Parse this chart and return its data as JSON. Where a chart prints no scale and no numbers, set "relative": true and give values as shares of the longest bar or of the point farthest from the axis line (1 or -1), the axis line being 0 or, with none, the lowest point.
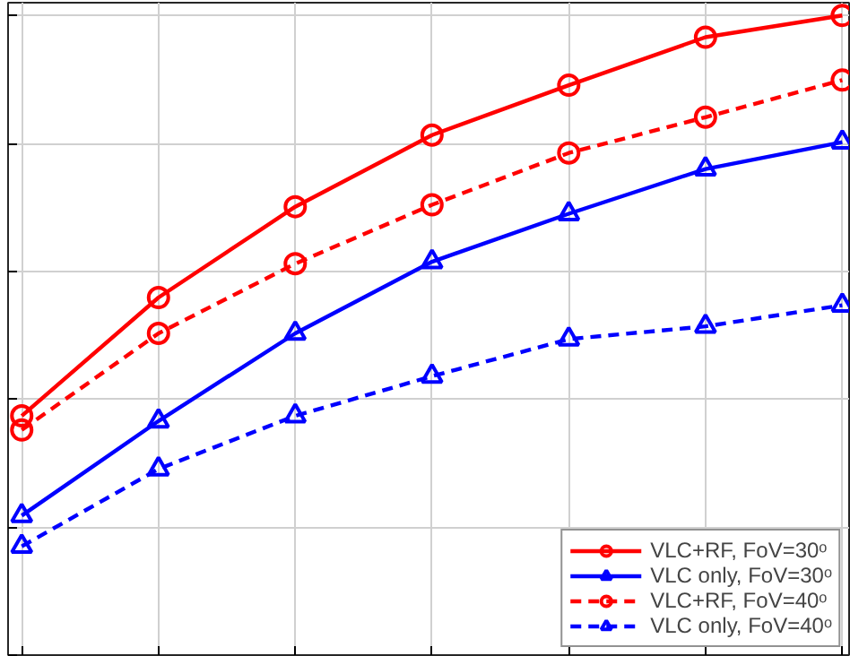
{
  "chart_data": {
    "type": "line",
    "relative": true,
    "categories": [
      null,
      null,
      null,
      null,
      null,
      null,
      null
    ],
    "tick_labels": false,
    "grid": true,
    "legend": "bottom right",
    "series": [
      {
        "name": "VLC+RF, FoV=30ᵒ",
        "color": "#ff0000",
        "marker": "circle",
        "line_style": "solid",
        "values": [
          0.374,
          0.559,
          0.701,
          0.813,
          0.891,
          0.966,
          1.0
        ]
      },
      {
        "name": "VLC only, FoV=30ᵒ",
        "color": "#0000ff",
        "marker": "triangle",
        "line_style": "solid",
        "values": [
          0.218,
          0.366,
          0.503,
          0.615,
          0.69,
          0.76,
          0.802
        ]
      },
      {
        "name": "VLC+RF, FoV=40ᵒ",
        "color": "#ff0000",
        "marker": "circle",
        "line_style": "dashed",
        "values": [
          0.352,
          0.503,
          0.612,
          0.704,
          0.785,
          0.841,
          0.899
        ]
      },
      {
        "name": "VLC only, FoV=40ᵒ",
        "color": "#0000ff",
        "marker": "triangle",
        "line_style": "dashed",
        "values": [
          0.17,
          0.291,
          0.374,
          0.436,
          0.494,
          0.514,
          0.547
        ]
      }
    ]
  }
}
